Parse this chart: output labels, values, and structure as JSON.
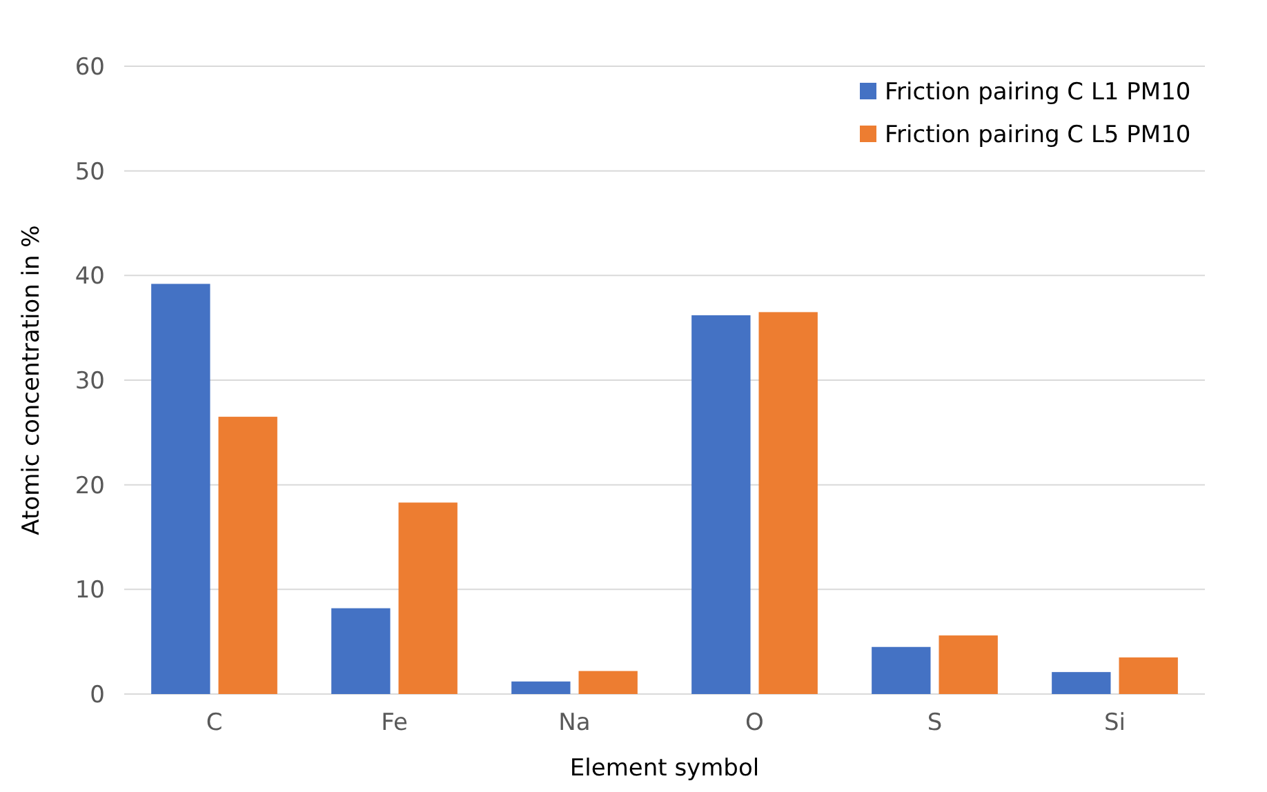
{
  "chart_data": {
    "type": "bar",
    "xlabel": "Element symbol",
    "ylabel": "Atomic concentration in %",
    "categories": [
      "C",
      "Fe",
      "Na",
      "O",
      "S",
      "Si"
    ],
    "series": [
      {
        "name": "Friction pairing C L1 PM10",
        "color": "#4472c4",
        "values": [
          39.2,
          8.2,
          1.2,
          36.2,
          4.5,
          2.1
        ]
      },
      {
        "name": "Friction pairing C L5 PM10",
        "color": "#ed7d31",
        "values": [
          26.5,
          18.3,
          2.2,
          36.5,
          5.6,
          3.5
        ]
      }
    ],
    "ylim": [
      0,
      60
    ],
    "yticks": [
      0,
      10,
      20,
      30,
      40,
      50,
      60
    ],
    "grid": "y",
    "legend": "top right"
  }
}
